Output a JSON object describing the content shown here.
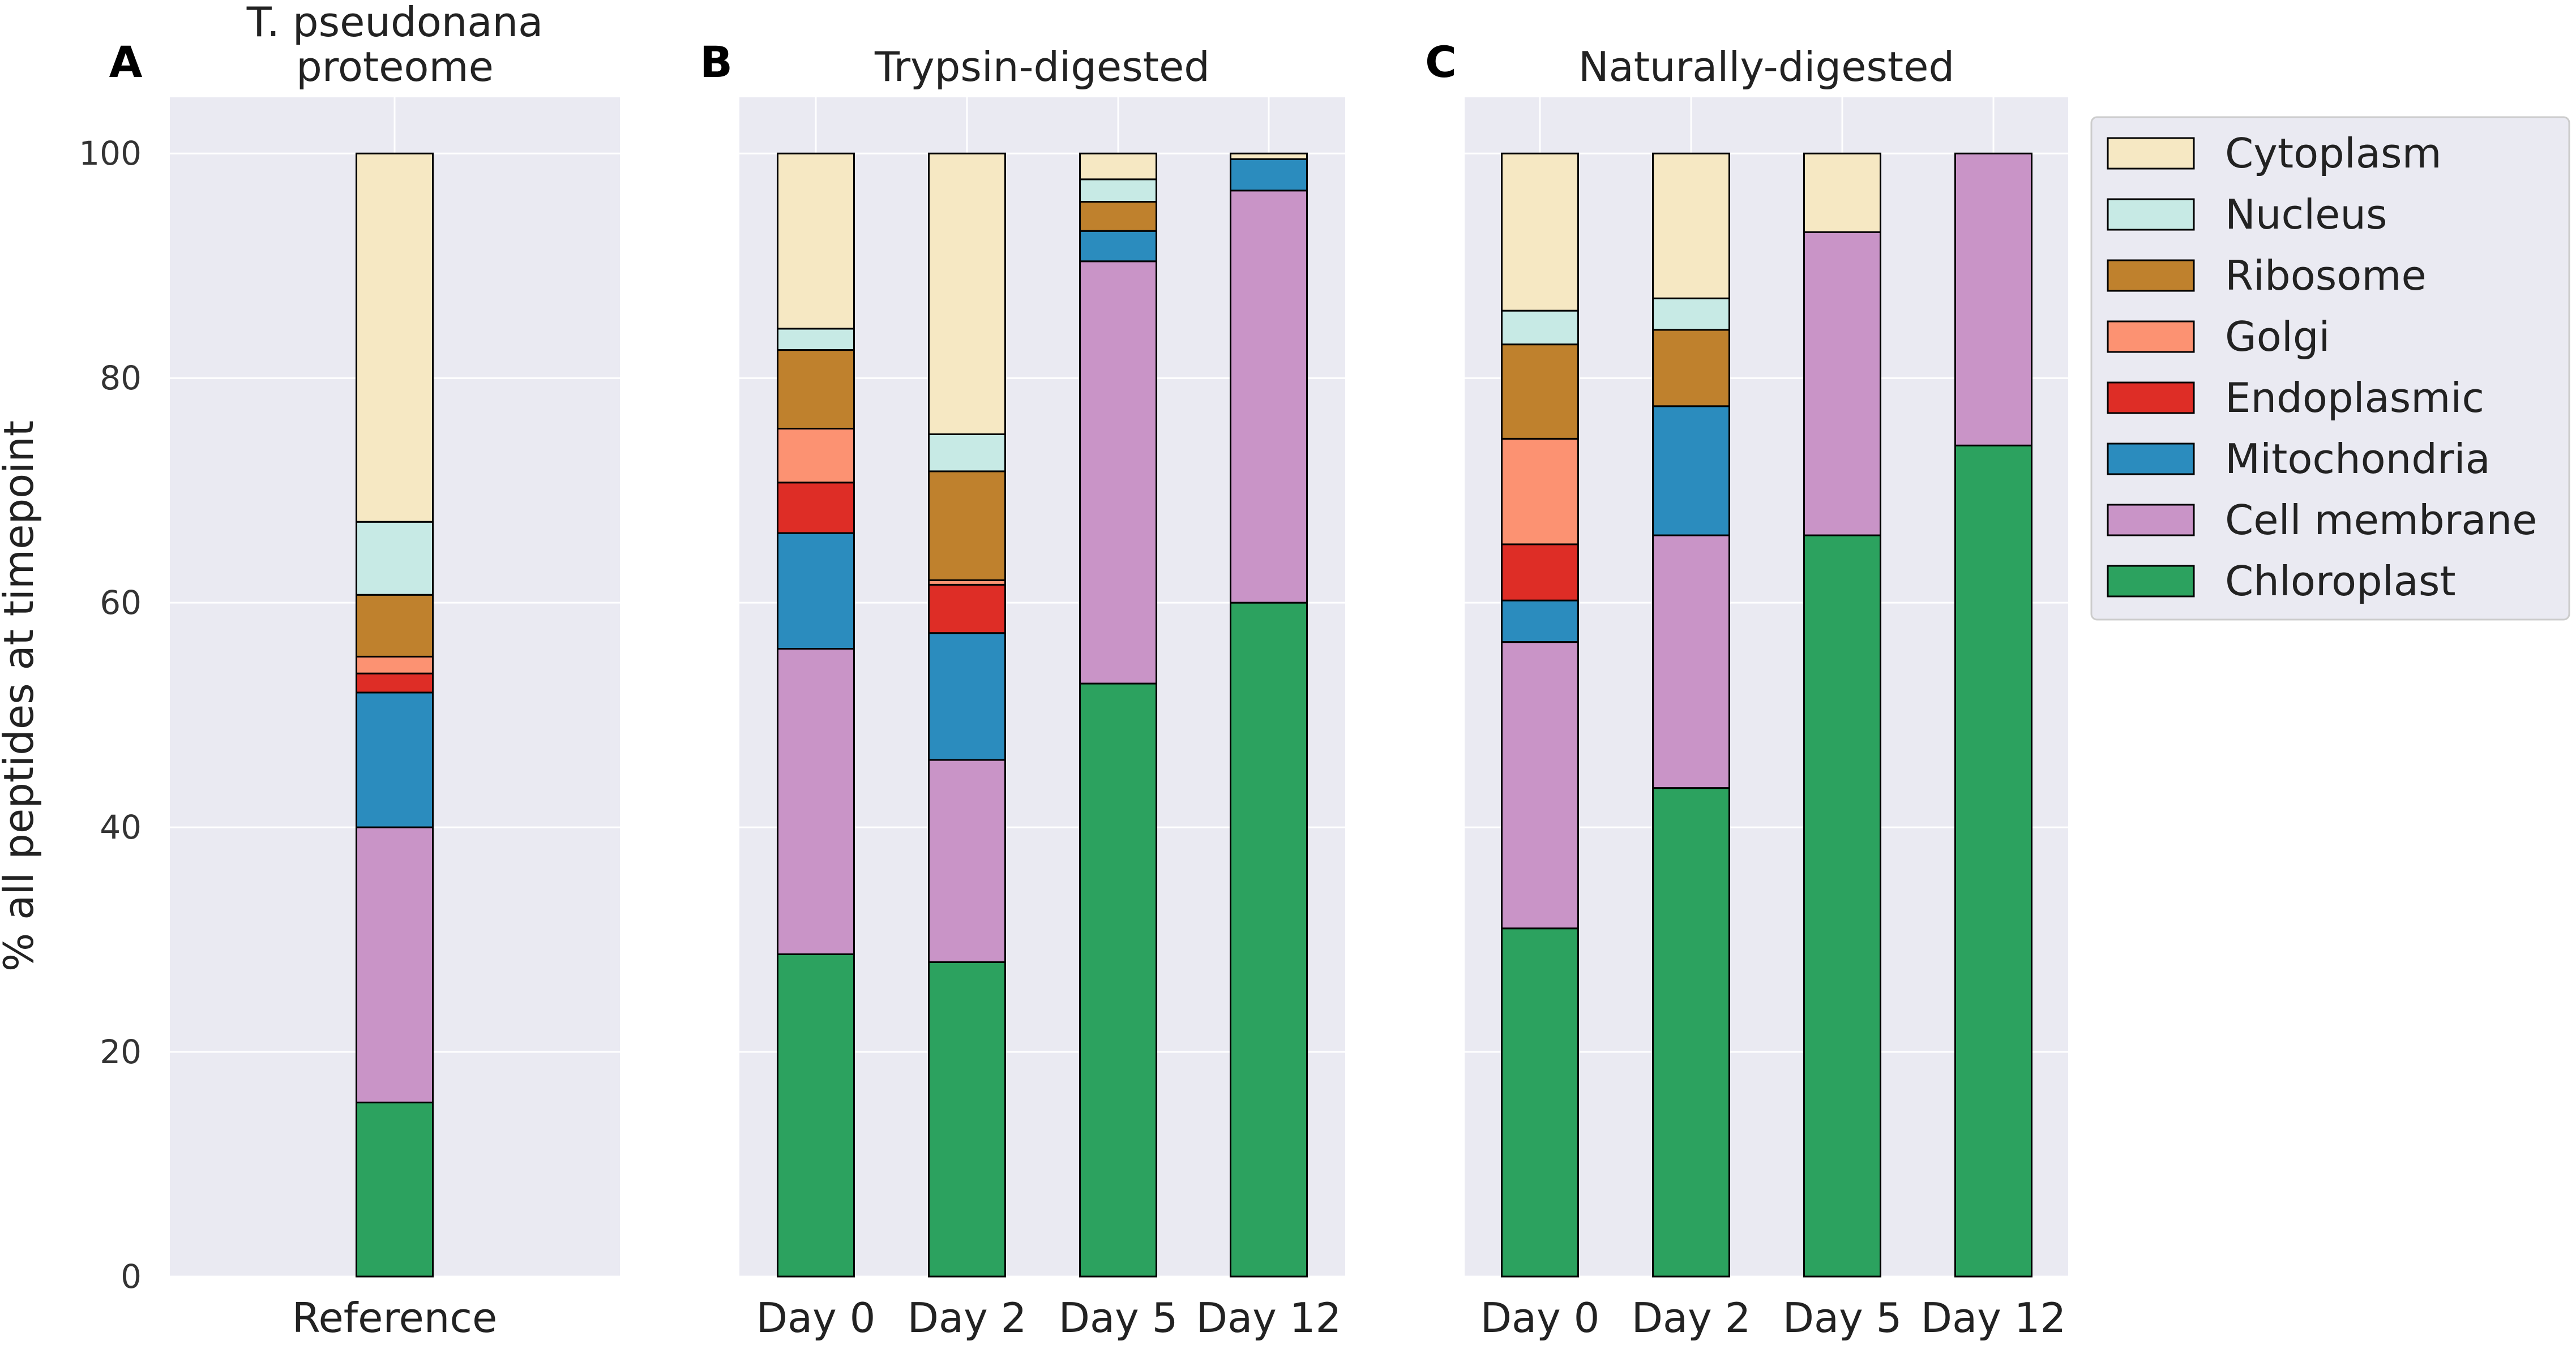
{
  "chart_data": {
    "type": "bar",
    "stacked": true,
    "ylabel": "% all peptides at timepoint",
    "ylim": [
      0,
      105
    ],
    "yticks": [
      0,
      20,
      40,
      60,
      80,
      100
    ],
    "grid": true,
    "legend_position": "right",
    "colors": {
      "Chloroplast": "#2ca25f",
      "Cell membrane": "#c994c7",
      "Mitochondria": "#2b8cbe",
      "Endoplasmic": "#de2d26",
      "Golgi": "#fc9272",
      "Ribosome": "#bf812d",
      "Nucleus": "#c7eae5",
      "Cytoplasm": "#f6e8c3"
    },
    "legend": [
      "Cytoplasm",
      "Nucleus",
      "Ribosome",
      "Golgi",
      "Endoplasmic",
      "Mitochondria",
      "Cell membrane",
      "Chloroplast"
    ],
    "stack_order": [
      "Chloroplast",
      "Cell membrane",
      "Mitochondria",
      "Endoplasmic",
      "Golgi",
      "Ribosome",
      "Nucleus",
      "Cytoplasm"
    ],
    "panels": [
      {
        "letter": "A",
        "title": "T. pseudonana proteome",
        "title_lines": [
          "T. pseudonana",
          "proteome"
        ],
        "categories": [
          "Reference"
        ],
        "series": [
          {
            "name": "Chloroplast",
            "values": [
              15.5
            ]
          },
          {
            "name": "Cell membrane",
            "values": [
              24.5
            ]
          },
          {
            "name": "Mitochondria",
            "values": [
              12.0
            ]
          },
          {
            "name": "Endoplasmic",
            "values": [
              1.7
            ]
          },
          {
            "name": "Golgi",
            "values": [
              1.5
            ]
          },
          {
            "name": "Ribosome",
            "values": [
              5.5
            ]
          },
          {
            "name": "Nucleus",
            "values": [
              6.5
            ]
          },
          {
            "name": "Cytoplasm",
            "values": [
              32.8
            ]
          }
        ]
      },
      {
        "letter": "B",
        "title": "Trypsin-digested",
        "title_lines": [
          "Trypsin-digested"
        ],
        "categories": [
          "Day 0",
          "Day 2",
          "Day 5",
          "Day 12"
        ],
        "series": [
          {
            "name": "Chloroplast",
            "values": [
              28.7,
              28.0,
              52.8,
              60.0
            ]
          },
          {
            "name": "Cell membrane",
            "values": [
              27.2,
              18.0,
              37.6,
              36.7
            ]
          },
          {
            "name": "Mitochondria",
            "values": [
              10.3,
              11.3,
              2.7,
              2.8
            ]
          },
          {
            "name": "Endoplasmic",
            "values": [
              4.5,
              4.3,
              0,
              0
            ]
          },
          {
            "name": "Golgi",
            "values": [
              4.8,
              0.4,
              0,
              0
            ]
          },
          {
            "name": "Ribosome",
            "values": [
              7.0,
              9.7,
              2.6,
              0
            ]
          },
          {
            "name": "Nucleus",
            "values": [
              1.9,
              3.3,
              2.0,
              0
            ]
          },
          {
            "name": "Cytoplasm",
            "values": [
              15.6,
              25.0,
              2.3,
              0.5
            ]
          }
        ]
      },
      {
        "letter": "C",
        "title": "Naturally-digested",
        "title_lines": [
          "Naturally-digested"
        ],
        "categories": [
          "Day 0",
          "Day 2",
          "Day 5",
          "Day 12"
        ],
        "series": [
          {
            "name": "Chloroplast",
            "values": [
              31.0,
              43.5,
              66.0,
              74.0
            ]
          },
          {
            "name": "Cell membrane",
            "values": [
              25.5,
              22.5,
              27.0,
              26.0
            ]
          },
          {
            "name": "Mitochondria",
            "values": [
              3.7,
              11.5,
              0,
              0
            ]
          },
          {
            "name": "Endoplasmic",
            "values": [
              5.0,
              0,
              0,
              0
            ]
          },
          {
            "name": "Golgi",
            "values": [
              9.4,
              0,
              0,
              0
            ]
          },
          {
            "name": "Ribosome",
            "values": [
              8.4,
              6.8,
              0,
              0
            ]
          },
          {
            "name": "Nucleus",
            "values": [
              3.0,
              2.8,
              0,
              0
            ]
          },
          {
            "name": "Cytoplasm",
            "values": [
              14.0,
              12.9,
              7.0,
              0
            ]
          }
        ]
      }
    ]
  }
}
